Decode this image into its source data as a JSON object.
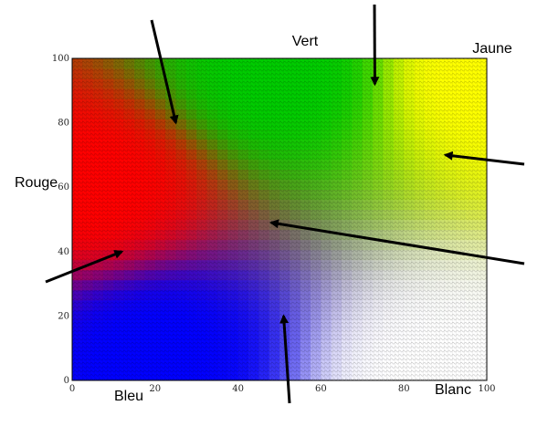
{
  "chart_data": {
    "type": "heatmap",
    "title": "",
    "xlabel": "",
    "ylabel": "",
    "xlim": [
      0,
      100
    ],
    "ylim": [
      0,
      100
    ],
    "xticks": [
      "0",
      "20",
      "40",
      "60",
      "80",
      "100"
    ],
    "yticks": [
      "0",
      "20",
      "40",
      "60",
      "80",
      "100"
    ],
    "grid": true,
    "color_labels": [
      {
        "text": "Vert",
        "color": "#00cc00",
        "x": 50,
        "y": 100
      },
      {
        "text": "Jaune",
        "color": "#ffff00",
        "x": 100,
        "y": 100
      },
      {
        "text": "Rouge",
        "color": "#ff0000",
        "x": 0,
        "y": 60
      },
      {
        "text": "Bleu",
        "color": "#0000ff",
        "x": 20,
        "y": 8
      },
      {
        "text": "Blanc",
        "color": "#ffffff",
        "x": 100,
        "y": 0
      }
    ],
    "color_centers": [
      {
        "name": "Vert",
        "color": "#00cc00",
        "x": 50,
        "y": 95
      },
      {
        "name": "Jaune",
        "color": "#ffff00",
        "x": 100,
        "y": 95
      },
      {
        "name": "Rouge",
        "color": "#ff0000",
        "x": 5,
        "y": 60
      },
      {
        "name": "Bleu",
        "color": "#0000ff",
        "x": 20,
        "y": 8
      },
      {
        "name": "Blanc",
        "color": "#ffffff",
        "x": 90,
        "y": 0
      }
    ],
    "arrow_targets": [
      {
        "x": 25,
        "y": 80
      },
      {
        "x": 73,
        "y": 92
      },
      {
        "x": 90,
        "y": 70
      },
      {
        "x": 48,
        "y": 49
      },
      {
        "x": 12,
        "y": 40
      },
      {
        "x": 51,
        "y": 20
      }
    ]
  }
}
